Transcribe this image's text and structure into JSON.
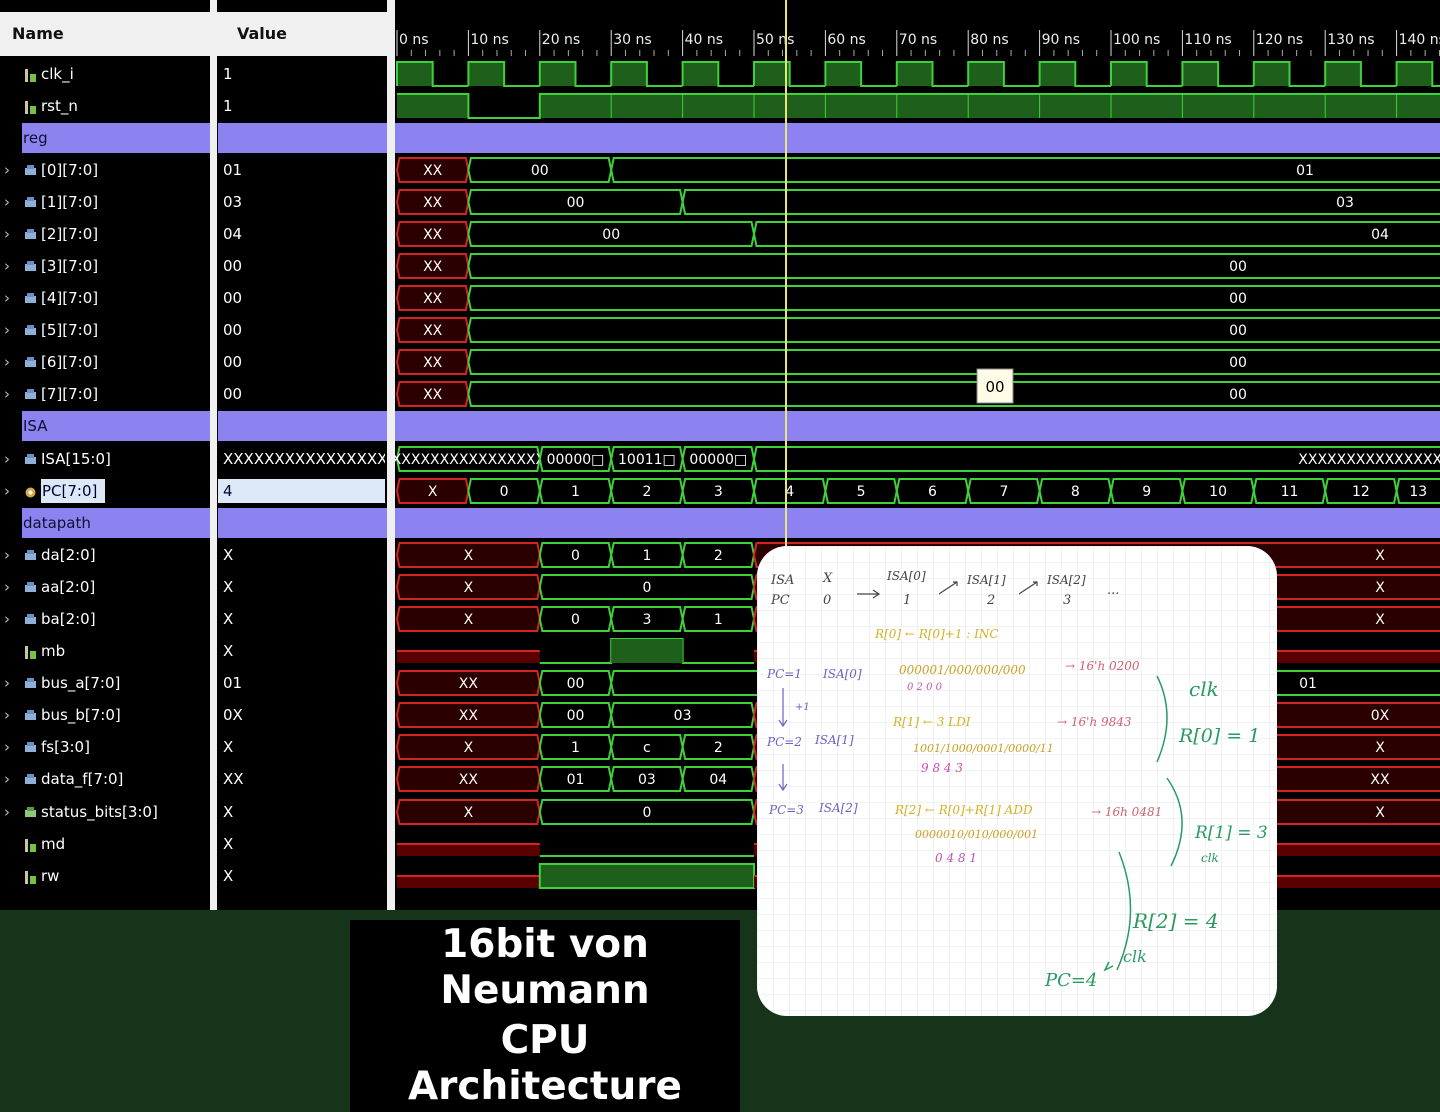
{
  "header": {
    "name": "Name",
    "value": "Value"
  },
  "timeline": {
    "ticks": [
      "0 ns",
      "10 ns",
      "20 ns",
      "30 ns",
      "40 ns",
      "50 ns",
      "60 ns",
      "70 ns",
      "80 ns",
      "90 ns",
      "100 ns",
      "110 ns",
      "120 ns",
      "130 ns",
      "140 ns"
    ]
  },
  "signals": {
    "clk_i": {
      "name": "clk_i",
      "value": "1"
    },
    "rst_n": {
      "name": "rst_n",
      "value": "1"
    },
    "grp_reg": "reg",
    "r0": {
      "name": "[0][7:0]",
      "value": "01",
      "segs": [
        "XX",
        "00",
        "01"
      ]
    },
    "r1": {
      "name": "[1][7:0]",
      "value": "03",
      "segs": [
        "XX",
        "00",
        "03"
      ]
    },
    "r2": {
      "name": "[2][7:0]",
      "value": "04",
      "segs": [
        "XX",
        "00",
        "04"
      ]
    },
    "r3": {
      "name": "[3][7:0]",
      "value": "00",
      "segs": [
        "XX",
        "00"
      ]
    },
    "r4": {
      "name": "[4][7:0]",
      "value": "00",
      "segs": [
        "XX",
        "00"
      ]
    },
    "r5": {
      "name": "[5][7:0]",
      "value": "00",
      "segs": [
        "XX",
        "00"
      ]
    },
    "r6": {
      "name": "[6][7:0]",
      "value": "00",
      "segs": [
        "XX",
        "00"
      ]
    },
    "r7": {
      "name": "[7][7:0]",
      "value": "00",
      "segs": [
        "XX",
        "00"
      ]
    },
    "grp_isa": "ISA",
    "isa": {
      "name": "ISA[15:0]",
      "value": "XXXXXXXXXXXXXXXX",
      "segs": [
        "XXXXXXXXXXXXXXXX",
        "00000□",
        "10011□",
        "00000□",
        "XXXXXXXXXXXXXXXX"
      ]
    },
    "pc": {
      "name": "PC[7:0]",
      "value": "4",
      "segs": [
        "X",
        "0",
        "1",
        "2",
        "3",
        "4",
        "5",
        "6",
        "7",
        "8",
        "9",
        "10",
        "11",
        "12",
        "13"
      ]
    },
    "grp_dp": "datapath",
    "da": {
      "name": "da[2:0]",
      "value": "X",
      "segs": [
        "X",
        "0",
        "1",
        "2",
        "X"
      ]
    },
    "aa": {
      "name": "aa[2:0]",
      "value": "X",
      "segs": [
        "X",
        "0",
        "X"
      ]
    },
    "ba": {
      "name": "ba[2:0]",
      "value": "X",
      "segs": [
        "X",
        "0",
        "3",
        "1",
        "X"
      ]
    },
    "mb": {
      "name": "mb",
      "value": "X"
    },
    "bus_a": {
      "name": "bus_a[7:0]",
      "value": "01",
      "segs": [
        "XX",
        "00",
        "01"
      ]
    },
    "bus_b": {
      "name": "bus_b[7:0]",
      "value": "0X",
      "segs": [
        "XX",
        "00",
        "03",
        "0X"
      ]
    },
    "fs": {
      "name": "fs[3:0]",
      "value": "X",
      "segs": [
        "X",
        "1",
        "c",
        "2",
        "X"
      ]
    },
    "data_f": {
      "name": "data_f[7:0]",
      "value": "XX",
      "segs": [
        "XX",
        "01",
        "03",
        "04",
        "XX"
      ]
    },
    "status": {
      "name": "status_bits[3:0]",
      "value": "X",
      "segs": [
        "X",
        "0",
        "X"
      ]
    },
    "md": {
      "name": "md",
      "value": "X"
    },
    "rw": {
      "name": "rw",
      "value": "X"
    }
  },
  "tooltip": "00",
  "notes": {
    "l1a": "ISA",
    "l1b": "X",
    "l1c": "ISA[0]",
    "l1d": "ISA[1]",
    "l1e": "ISA[2]",
    "l1f": "...",
    "l2a": "PC",
    "l2b": "0",
    "l2c": "1",
    "l2d": "2",
    "l2e": "3",
    "inc": "R[0] ← R[0]+1 : INC",
    "pc1": "PC=1",
    "isa0": "ISA[0]",
    "bin1": "000001/000/000/000",
    "hex1": "→ 16'h 0200",
    "dig1": "0   2   0   0",
    "plus1": "+1",
    "clk1": "clk",
    "res1": "R[0] = 1",
    "ldi": "R[1] ← 3   LDI",
    "hex2": "→ 16'h 9843",
    "pc2": "PC=2",
    "isa1": "ISA[1]",
    "bin2": "1001/1000/0001/0000/11",
    "dig2": "9    8     4     3",
    "pc3": "PC=3",
    "isa2": "ISA[2]",
    "add": "R[2] ← R[0]+R[1]  ADD",
    "hex3": "→ 16h 0481",
    "bin3": "0000010/010/000/001",
    "dig3": "0     4       8      1",
    "res2": "R[1] = 3",
    "clk2": "clk",
    "res3": "R[2] = 4",
    "clk3": "clk",
    "pc4": "PC=4"
  },
  "caption": {
    "line1": "16bit von Neumann",
    "line2": "CPU Architecture"
  },
  "colors": {
    "wave": "#3ed13a",
    "unknown": "#d22424",
    "group": "#8c82f0",
    "cursor": "#e6e67a"
  }
}
